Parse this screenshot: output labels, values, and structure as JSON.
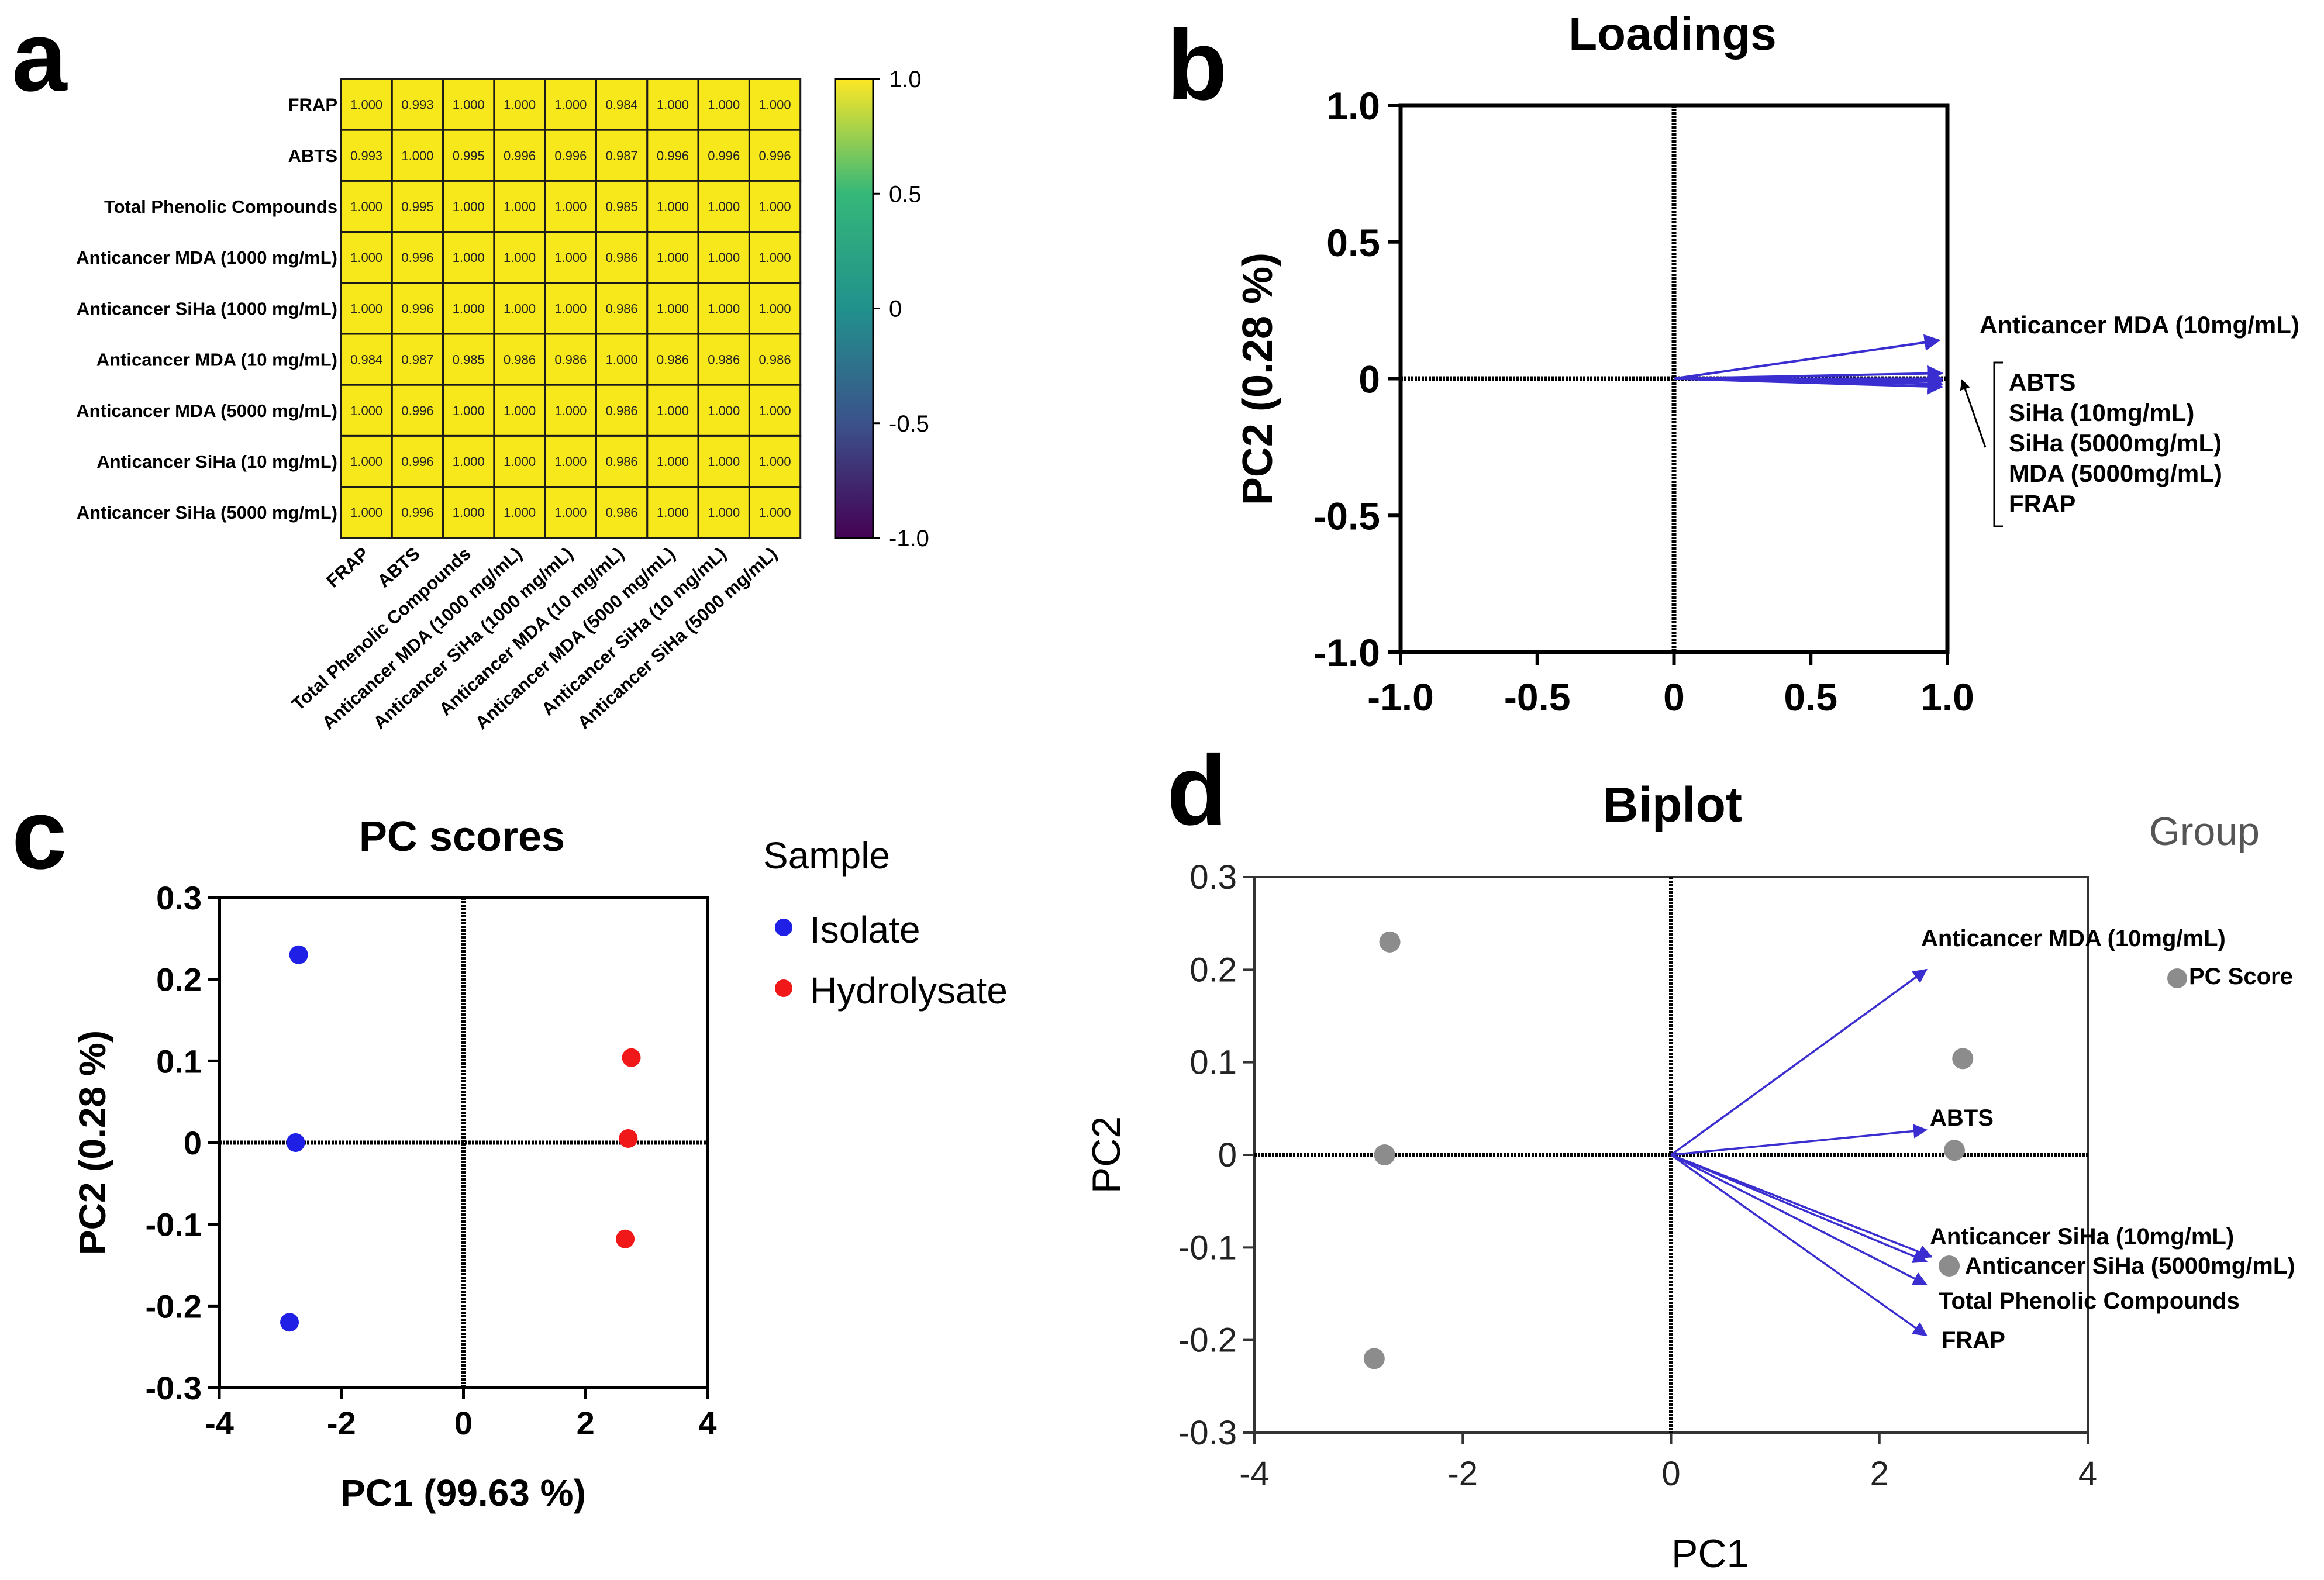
{
  "panel_letters": [
    "a",
    "b",
    "c",
    "d"
  ],
  "chart_data": [
    {
      "panel": "a",
      "type": "heatmap",
      "rows": [
        "FRAP",
        "ABTS",
        "Total Phenolic Compounds",
        "Anticancer MDA (1000 mg/mL)",
        "Anticancer SiHa (1000 mg/mL)",
        "Anticancer MDA (10 mg/mL)",
        "Anticancer MDA (5000 mg/mL)",
        "Anticancer SiHa (10 mg/mL)",
        "Anticancer SiHa (5000 mg/mL)"
      ],
      "columns": [
        "FRAP",
        "ABTS",
        "Total Phenolic Compounds",
        "Anticancer MDA (1000 mg/mL)",
        "Anticancer SiHa (1000 mg/mL)",
        "Anticancer MDA (10 mg/mL)",
        "Anticancer MDA (5000 mg/mL)",
        "Anticancer SiHa (10 mg/mL)",
        "Anticancer SiHa (5000 mg/mL)"
      ],
      "values": [
        [
          "1.000",
          "0.993",
          "1.000",
          "1.000",
          "1.000",
          "0.984",
          "1.000",
          "1.000",
          "1.000"
        ],
        [
          "0.993",
          "1.000",
          "0.995",
          "0.996",
          "0.996",
          "0.987",
          "0.996",
          "0.996",
          "0.996"
        ],
        [
          "1.000",
          "0.995",
          "1.000",
          "1.000",
          "1.000",
          "0.985",
          "1.000",
          "1.000",
          "1.000"
        ],
        [
          "1.000",
          "0.996",
          "1.000",
          "1.000",
          "1.000",
          "0.986",
          "1.000",
          "1.000",
          "1.000"
        ],
        [
          "1.000",
          "0.996",
          "1.000",
          "1.000",
          "1.000",
          "0.986",
          "1.000",
          "1.000",
          "1.000"
        ],
        [
          "0.984",
          "0.987",
          "0.985",
          "0.986",
          "0.986",
          "1.000",
          "0.986",
          "0.986",
          "0.986"
        ],
        [
          "1.000",
          "0.996",
          "1.000",
          "1.000",
          "1.000",
          "0.986",
          "1.000",
          "1.000",
          "1.000"
        ],
        [
          "1.000",
          "0.996",
          "1.000",
          "1.000",
          "1.000",
          "0.986",
          "1.000",
          "1.000",
          "1.000"
        ],
        [
          "1.000",
          "0.996",
          "1.000",
          "1.000",
          "1.000",
          "0.986",
          "1.000",
          "1.000",
          "1.000"
        ]
      ],
      "colorbar": {
        "ticks": [
          "1.0",
          "0.5",
          "0",
          "-0.5",
          "-1.0"
        ],
        "range": [
          -1.0,
          1.0
        ],
        "colors": [
          "#fde725",
          "#35b779",
          "#21918c",
          "#3b528b",
          "#440154"
        ]
      },
      "cell_color": "#f6e81a"
    },
    {
      "panel": "b",
      "type": "line",
      "title": "Loadings",
      "xlabel": "",
      "ylabel": "PC2 (0.28 %)",
      "xlim": [
        -1.0,
        1.0
      ],
      "ylim": [
        -1.0,
        1.0
      ],
      "xticks": [
        "-1.0",
        "-0.5",
        "0",
        "0.5",
        "1.0"
      ],
      "yticks": [
        "1.0",
        "0.5",
        "0",
        "-0.5",
        "-1.0"
      ],
      "vectors": [
        {
          "name": "Anticancer MDA (10mg/mL)",
          "x": 0.97,
          "y": 0.14
        },
        {
          "name": "ABTS",
          "x": 0.98,
          "y": 0.02
        },
        {
          "name": "SiHa (10mg/mL)",
          "x": 0.98,
          "y": 0.0
        },
        {
          "name": "SiHa (5000mg/mL)",
          "x": 0.98,
          "y": -0.01
        },
        {
          "name": "MDA (5000mg/mL)",
          "x": 0.98,
          "y": -0.02
        },
        {
          "name": "FRAP",
          "x": 0.98,
          "y": -0.03
        }
      ],
      "vector_color": "#3a2ed0",
      "annotations": [
        "Anticancer MDA (10mg/mL)",
        "ABTS",
        "SiHa (10mg/mL)",
        "SiHa (5000mg/mL)",
        "MDA (5000mg/mL)",
        "FRAP"
      ]
    },
    {
      "panel": "c",
      "type": "scatter",
      "title": "PC scores",
      "xlabel": "PC1 (99.63 %)",
      "ylabel": "PC2 (0.28 %)",
      "xlim": [
        -4,
        4
      ],
      "ylim": [
        -0.3,
        0.3
      ],
      "xticks": [
        "-4",
        "-2",
        "0",
        "2",
        "4"
      ],
      "yticks": [
        "0.3",
        "0.2",
        "0.1",
        "0",
        "-0.1",
        "-0.2",
        "-0.3"
      ],
      "legend_title": "Sample",
      "legend_placement": "right",
      "series": [
        {
          "name": "Isolate",
          "color": "#1f1fe6",
          "points": [
            {
              "x": -2.7,
              "y": 0.23
            },
            {
              "x": -2.75,
              "y": 0.0
            },
            {
              "x": -2.85,
              "y": -0.22
            }
          ]
        },
        {
          "name": "Hydrolysate",
          "color": "#f01818",
          "points": [
            {
              "x": 2.75,
              "y": 0.104
            },
            {
              "x": 2.7,
              "y": 0.005
            },
            {
              "x": 2.65,
              "y": -0.118
            }
          ]
        }
      ]
    },
    {
      "panel": "d",
      "type": "scatter",
      "title": "Biplot",
      "xlabel": "PC1",
      "ylabel": "PC2",
      "xlim": [
        -4,
        4
      ],
      "ylim": [
        -0.3,
        0.3
      ],
      "xticks": [
        "-4",
        "-2",
        "0",
        "2",
        "4"
      ],
      "yticks": [
        "0.3",
        "0.2",
        "0.1",
        "0",
        "-0.1",
        "-0.2",
        "-0.3"
      ],
      "legend_title": "Group",
      "legend_entry": "PC Score",
      "point_color": "#8c8c8c",
      "vector_color": "#3a2ed0",
      "points": [
        {
          "x": -2.7,
          "y": 0.23
        },
        {
          "x": -2.75,
          "y": 0.0
        },
        {
          "x": -2.85,
          "y": -0.22
        },
        {
          "x": 2.8,
          "y": 0.104
        },
        {
          "x": 2.72,
          "y": 0.005
        },
        {
          "x": 2.67,
          "y": -0.12
        }
      ],
      "vectors": [
        {
          "name": "Anticancer MDA (10mg/mL)",
          "x": 2.45,
          "y": 0.2
        },
        {
          "name": "ABTS",
          "x": 2.45,
          "y": 0.027
        },
        {
          "name": "Anticancer SiHa (10mg/mL)",
          "x": 2.5,
          "y": -0.11
        },
        {
          "name": "Anticancer SiHa (5000mg/mL)",
          "x": 2.45,
          "y": -0.115
        },
        {
          "name": "Total Phenolic Compounds",
          "x": 2.45,
          "y": -0.14
        },
        {
          "name": "FRAP",
          "x": 2.45,
          "y": -0.195
        }
      ]
    }
  ]
}
